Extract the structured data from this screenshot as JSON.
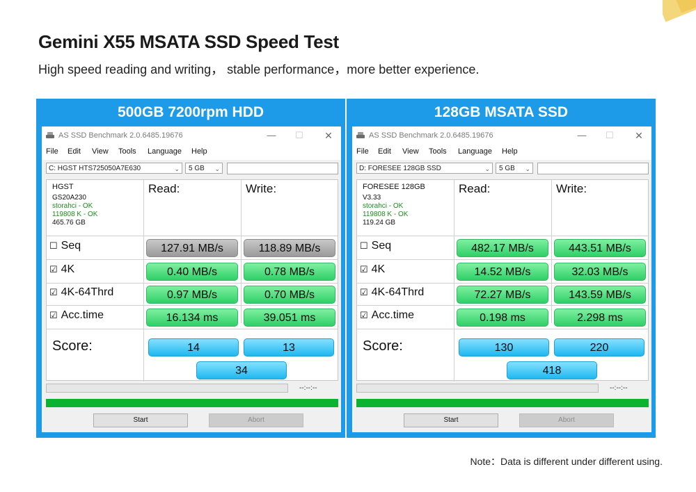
{
  "page": {
    "title": "Gemini X55 MSATA SSD Speed Test",
    "subtitle": "High speed reading and writing， stable performance，more better experience.",
    "note": "Note：Data is different under different using."
  },
  "colors": {
    "panel_blue": "#1e9be8",
    "result_green": "#2fcf68",
    "result_gray": "#9a9a9a",
    "score_blue": "#1fb8ef",
    "progress_green": "#0cb330"
  },
  "panels": [
    {
      "header": "500GB 7200rpm  HDD",
      "window_title": "AS SSD Benchmark 2.0.6485.19676",
      "menu": [
        "File",
        "Edit",
        "View",
        "Tools",
        "Language",
        "Help"
      ],
      "drive": "C: HGST HTS725050A7E630",
      "size": "5 GB",
      "info": {
        "model": "HGST",
        "firmware": "GS20A230",
        "driver": "storahci - OK",
        "alignment": "119808 K - OK",
        "capacity": "465.76 GB"
      },
      "read_label": "Read:",
      "write_label": "Write:",
      "rows": [
        {
          "label": "Seq",
          "checkbox": "☐",
          "read": "127.91 MB/s",
          "write": "118.89 MB/s",
          "style": "gray"
        },
        {
          "label": "4K",
          "checkbox": "☑",
          "read": "0.40 MB/s",
          "write": "0.78 MB/s",
          "style": "green"
        },
        {
          "label": "4K-64Thrd",
          "checkbox": "☑",
          "read": "0.97 MB/s",
          "write": "0.70 MB/s",
          "style": "green"
        },
        {
          "label": "Acc.time",
          "checkbox": "☑",
          "read": "16.134 ms",
          "write": "39.051 ms",
          "style": "green"
        }
      ],
      "score_label": "Score:",
      "score_read": "14",
      "score_write": "13",
      "score_total": "34",
      "elapsed": "--:--:--",
      "start": "Start",
      "abort": "Abort"
    },
    {
      "header": "128GB MSATA SSD",
      "window_title": "AS SSD Benchmark 2.0.6485.19676",
      "menu": [
        "File",
        "Edit",
        "View",
        "Tools",
        "Language",
        "Help"
      ],
      "drive": "D: FORESEE 128GB SSD",
      "size": "5 GB",
      "info": {
        "model": "FORESEE 128GB",
        "firmware": "V3.33",
        "driver": "storahci - OK",
        "alignment": "119808 K - OK",
        "capacity": "119.24 GB"
      },
      "read_label": "Read:",
      "write_label": "Write:",
      "rows": [
        {
          "label": "Seq",
          "checkbox": "☐",
          "read": "482.17 MB/s",
          "write": "443.51 MB/s",
          "style": "green"
        },
        {
          "label": "4K",
          "checkbox": "☑",
          "read": "14.52 MB/s",
          "write": "32.03 MB/s",
          "style": "green"
        },
        {
          "label": "4K-64Thrd",
          "checkbox": "☑",
          "read": "72.27 MB/s",
          "write": "143.59 MB/s",
          "style": "green"
        },
        {
          "label": "Acc.time",
          "checkbox": "☑",
          "read": "0.198 ms",
          "write": "2.298 ms",
          "style": "green"
        }
      ],
      "score_label": "Score:",
      "score_read": "130",
      "score_write": "220",
      "score_total": "418",
      "elapsed": "--:--:--",
      "start": "Start",
      "abort": "Abort"
    }
  ]
}
